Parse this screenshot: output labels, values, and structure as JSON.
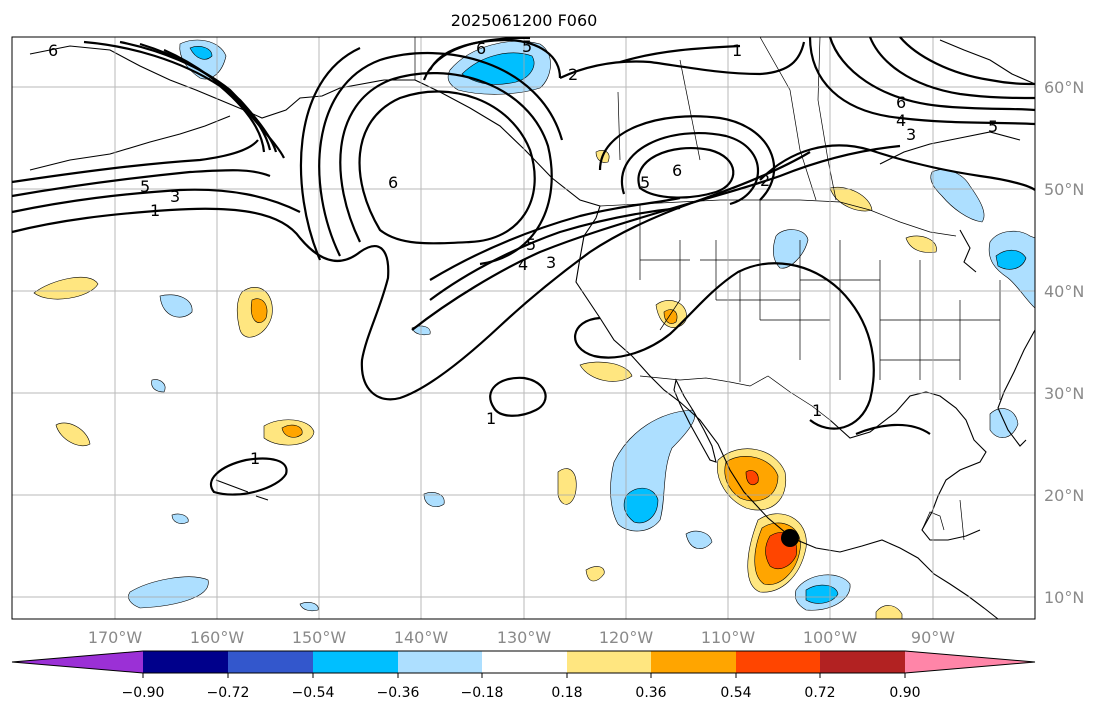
{
  "title": "2025061200 F060",
  "map": {
    "lon_labels": [
      "170°W",
      "160°W",
      "150°W",
      "140°W",
      "130°W",
      "120°W",
      "110°W",
      "100°W",
      "90°W"
    ],
    "lat_labels": [
      "60°N",
      "50°N",
      "40°N",
      "30°N",
      "20°N",
      "10°N"
    ],
    "lon_range": [
      -180,
      -80
    ],
    "lat_range": [
      8,
      65
    ],
    "grid": true,
    "marker": {
      "name": "black-dot",
      "lon": -104,
      "lat": 15.8,
      "color": "#000000"
    }
  },
  "contours": {
    "color": "#000000",
    "labels": [
      "6",
      "5",
      "4",
      "3",
      "2",
      "1"
    ]
  },
  "colorbar": {
    "ticks": [
      "−0.90",
      "−0.72",
      "−0.54",
      "−0.36",
      "−0.18",
      "0.18",
      "0.36",
      "0.54",
      "0.72",
      "0.90"
    ],
    "colors": [
      "#9b30d6",
      "#00008b",
      "#3357cc",
      "#00bfff",
      "#addfff",
      "#ffffff",
      "#ffe680",
      "#ffa500",
      "#ff4500",
      "#b22222",
      "#ff85a8"
    ]
  }
}
